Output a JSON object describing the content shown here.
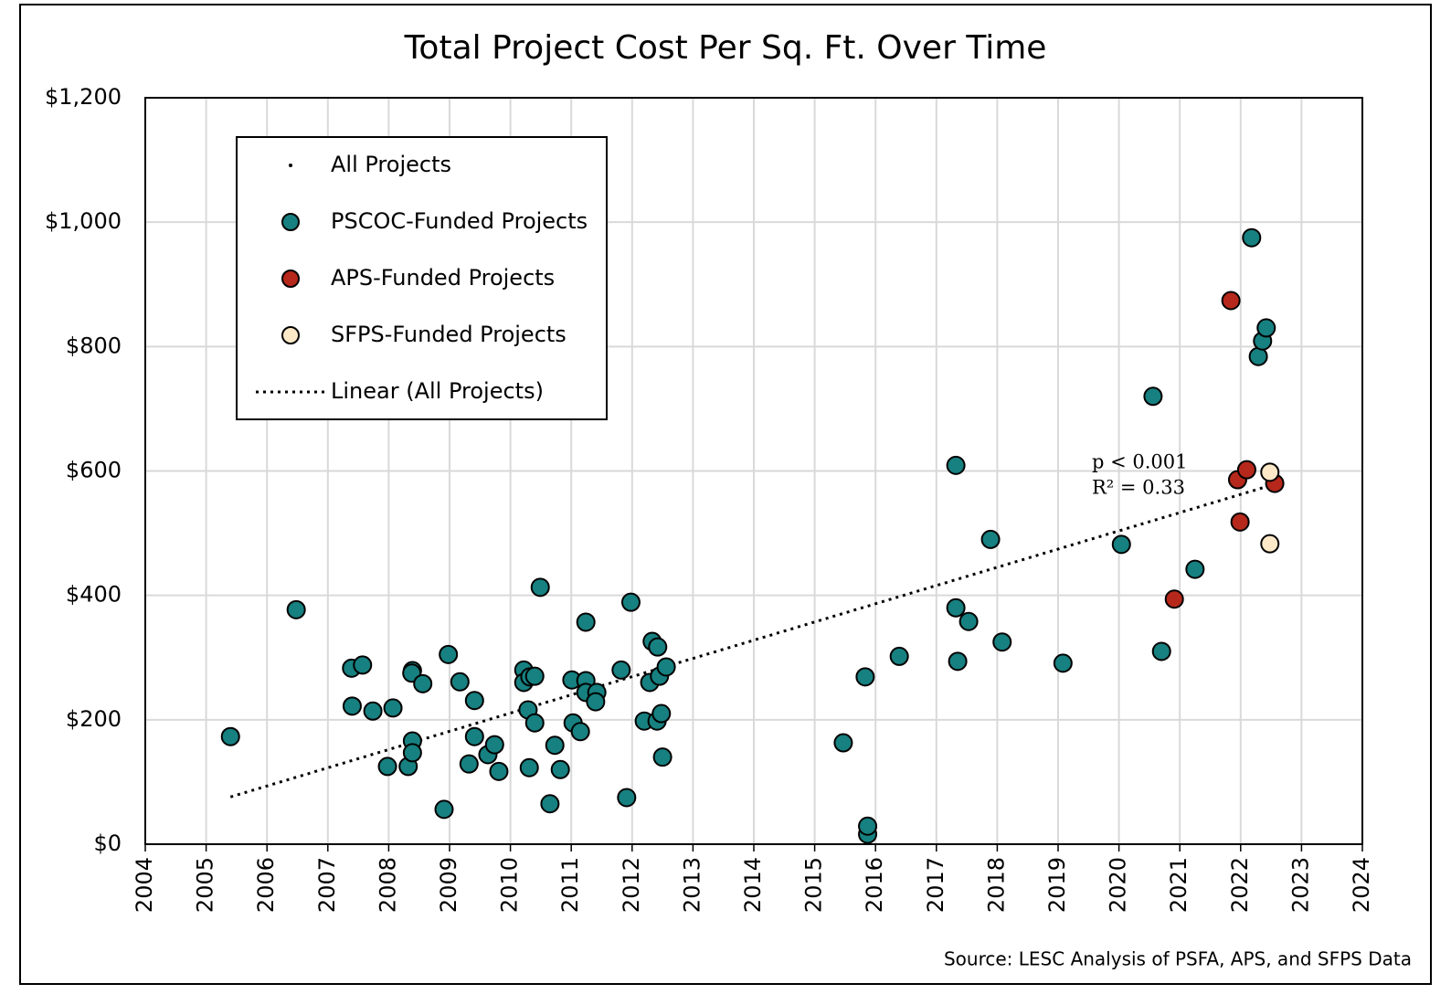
{
  "chart_data": {
    "type": "scatter",
    "title": "Total Project Cost Per Sq. Ft. Over Time",
    "source": "Source: LESC Analysis of PSFA, APS, and SFPS Data",
    "annotations": [
      "p < 0.001",
      "R² = 0.33"
    ],
    "xlim": [
      2004,
      2024
    ],
    "xticks": [
      2004,
      2005,
      2006,
      2007,
      2008,
      2009,
      2010,
      2011,
      2012,
      2013,
      2014,
      2015,
      2016,
      2017,
      2018,
      2019,
      2020,
      2021,
      2022,
      2023,
      2024
    ],
    "ylim": [
      0,
      1200
    ],
    "yticks": [
      {
        "value": 0,
        "label": "$0"
      },
      {
        "value": 200,
        "label": "$200"
      },
      {
        "value": 400,
        "label": "$400"
      },
      {
        "value": 600,
        "label": "$600"
      },
      {
        "value": 800,
        "label": "$800"
      },
      {
        "value": 1000,
        "label": "$1,000"
      },
      {
        "value": 1200,
        "label": "$1,200"
      }
    ],
    "grid": true,
    "legend": "upper left",
    "series": [
      {
        "name": "All Projects",
        "color": "#000000",
        "x": [],
        "values": []
      },
      {
        "name": "PSCOC-Funded Projects",
        "color": "#178080",
        "x": [
          2005.4,
          2006.48,
          2007.39,
          2007.57,
          2007.4,
          2007.74,
          2008.07,
          2007.98,
          2008.32,
          2008.39,
          2008.38,
          2008.56,
          2008.39,
          2008.39,
          2008.98,
          2009.17,
          2009.41,
          2009.41,
          2009.32,
          2009.63,
          2009.74,
          2009.81,
          2008.91,
          2010.22,
          2010.22,
          2010.32,
          2010.4,
          2010.49,
          2010.29,
          2010.4,
          2010.31,
          2010.65,
          2010.73,
          2010.82,
          2011.01,
          2011.24,
          2011.24,
          2011.03,
          2011.15,
          2011.24,
          2011.42,
          2011.4,
          2011.82,
          2011.98,
          2011.91,
          2012.2,
          2012.29,
          2012.33,
          2012.42,
          2012.45,
          2012.56,
          2012.41,
          2012.48,
          2012.5,
          2015.47,
          2015.83,
          2015.87,
          2015.87,
          2016.39,
          2017.32,
          2017.32,
          2017.35,
          2017.53,
          2017.89,
          2018.08,
          2019.08,
          2020.04,
          2020.56,
          2020.7,
          2021.25,
          2022.18,
          2022.29,
          2022.36,
          2022.42
        ],
        "values": [
          173,
          377,
          283,
          288,
          222,
          214,
          219,
          125,
          125,
          279,
          275,
          258,
          166,
          147,
          305,
          261,
          231,
          173,
          129,
          144,
          160,
          117,
          56,
          280,
          260,
          269,
          270,
          413,
          216,
          195,
          123,
          65,
          159,
          120,
          264,
          263,
          357,
          195,
          181,
          244,
          244,
          229,
          280,
          389,
          75,
          198,
          260,
          326,
          317,
          270,
          285,
          198,
          210,
          140,
          163,
          269,
          16,
          29,
          302,
          609,
          380,
          294,
          358,
          490,
          325,
          291,
          482,
          720,
          310,
          442,
          975,
          784,
          809,
          830
        ]
      },
      {
        "name": "APS-Funded Projects",
        "color": "#b5281b",
        "x": [
          2021.84,
          2021.95,
          2022.1,
          2021.99,
          2020.91,
          2022.56
        ],
        "values": [
          874,
          586,
          602,
          518,
          394,
          580
        ]
      },
      {
        "name": "SFPS-Funded Projects",
        "color": "#fde8c8",
        "x": [
          2022.48,
          2022.48
        ],
        "values": [
          598,
          483
        ]
      }
    ],
    "trendline": {
      "name": "Linear (All Projects)",
      "color": "#000000",
      "x": [
        2005.4,
        2022.5
      ],
      "values": [
        76,
        577
      ]
    }
  }
}
